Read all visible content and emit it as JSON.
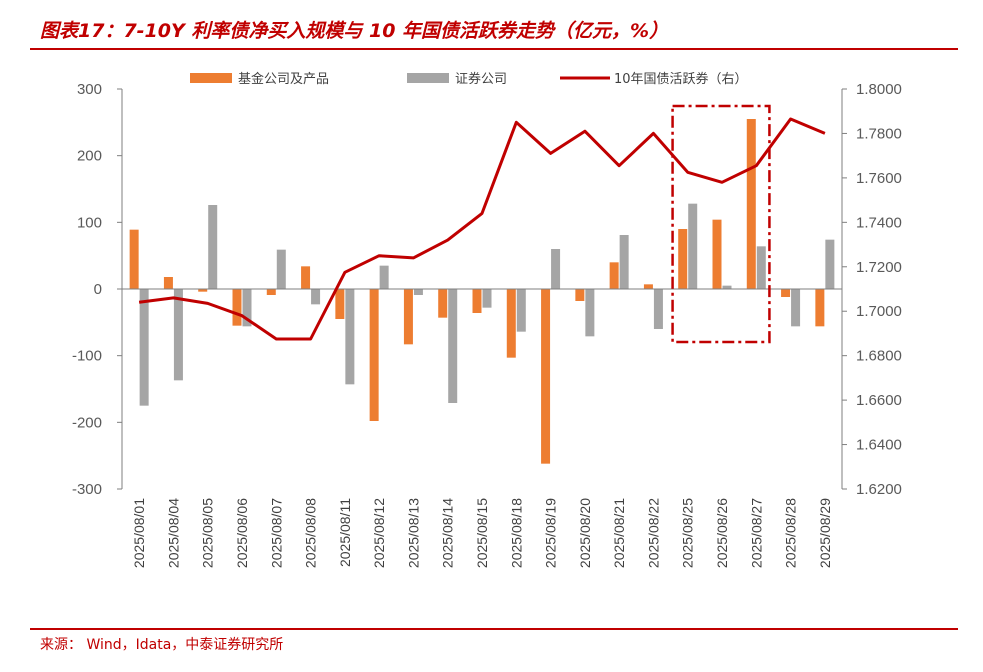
{
  "title": "图表17：7-10Y 利率债净买入规模与 10 年国债活跃券走势（亿元，%）",
  "source": "来源： Wind，Idata，中泰证券研究所",
  "chart_data": {
    "type": "bar",
    "categories": [
      "2025/08/01",
      "2025/08/04",
      "2025/08/05",
      "2025/08/06",
      "2025/08/07",
      "2025/08/08",
      "2025/08/11",
      "2025/08/12",
      "2025/08/13",
      "2025/08/14",
      "2025/08/15",
      "2025/08/18",
      "2025/08/19",
      "2025/08/20",
      "2025/08/21",
      "2025/08/22",
      "2025/08/25",
      "2025/08/26",
      "2025/08/27",
      "2025/08/28",
      "2025/08/29"
    ],
    "series": [
      {
        "name": "基金公司及产品",
        "kind": "bar",
        "axis": "left",
        "color": "#ed7d31",
        "values": [
          89,
          18,
          -4,
          -55,
          -9,
          34,
          -45,
          -198,
          -83,
          -43,
          -36,
          -103,
          -262,
          -18,
          40,
          7,
          90,
          104,
          255,
          -12,
          -56
        ]
      },
      {
        "name": "证券公司",
        "kind": "bar",
        "axis": "left",
        "color": "#a5a5a5",
        "values": [
          -175,
          -137,
          126,
          -56,
          59,
          -23,
          -143,
          35,
          -9,
          -171,
          -28,
          -64,
          60,
          -71,
          81,
          -60,
          128,
          5,
          64,
          -56,
          74
        ]
      },
      {
        "name": "10年国债活跃券（右）",
        "kind": "line",
        "axis": "right",
        "color": "#c00000",
        "values": [
          1.704,
          1.706,
          1.7035,
          1.698,
          1.6875,
          1.6875,
          1.7175,
          1.725,
          1.724,
          1.732,
          1.744,
          1.785,
          1.771,
          1.781,
          1.7655,
          1.78,
          1.7625,
          1.758,
          1.7655,
          1.7865,
          1.78
        ]
      }
    ],
    "left_axis": {
      "min": -300,
      "max": 300,
      "ticks": [
        300,
        200,
        100,
        0,
        -100,
        -200,
        -300
      ]
    },
    "right_axis": {
      "min": 1.62,
      "max": 1.8,
      "ticks": [
        "1.8000",
        "1.7800",
        "1.7600",
        "1.7400",
        "1.7200",
        "1.7000",
        "1.6800",
        "1.6600",
        "1.6400",
        "1.6200"
      ]
    },
    "highlight": {
      "from": "2025/08/25",
      "to": "2025/08/27",
      "color": "#c00000",
      "style": "dash-dot"
    },
    "legend_position": "top"
  }
}
